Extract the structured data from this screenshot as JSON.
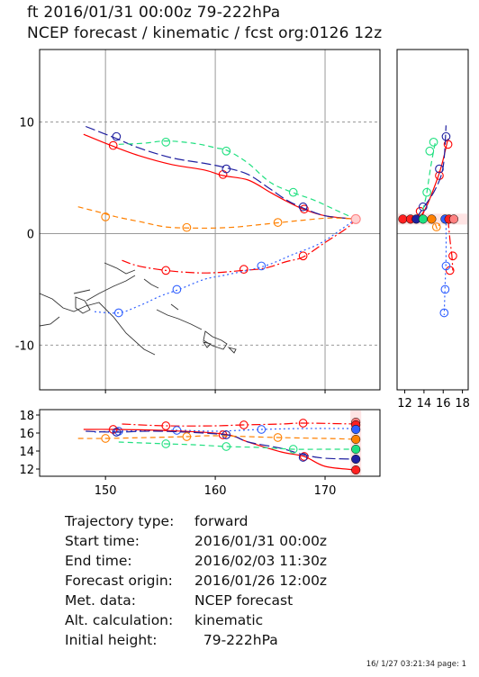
{
  "header": {
    "line1": "ft 2016/01/31 00:00z  79-222hPa",
    "line2": "NCEP forecast / kinematic / fcst org:0126 12z"
  },
  "chart_data": [
    {
      "type": "line",
      "title": "",
      "xlabel": "",
      "ylabel": "",
      "xlim": [
        144,
        175
      ],
      "ylim": [
        -14,
        16.5
      ],
      "xticks": [
        150,
        160,
        170
      ],
      "yticks": [
        -10,
        0,
        10
      ],
      "grid": true,
      "series": [
        {
          "color": "#ff0000",
          "dash": "solid",
          "points": [
            [
              148,
              8.9
            ],
            [
              150.5,
              7.9
            ],
            [
              153,
              7
            ],
            [
              156,
              6.2
            ],
            [
              159,
              5.7
            ],
            [
              160.7,
              5.2
            ],
            [
              163,
              4.8
            ],
            [
              165,
              3.7
            ],
            [
              166.5,
              2.9
            ],
            [
              168,
              2.2
            ],
            [
              170,
              1.6
            ],
            [
              172.8,
              1.3
            ]
          ],
          "markers": [
            [
              150.7,
              7.9
            ],
            [
              160.7,
              5.3
            ],
            [
              168.1,
              2.2
            ],
            [
              172.8,
              1.3
            ]
          ]
        },
        {
          "color": "#2020a0",
          "dash": "long",
          "points": [
            [
              148.2,
              9.6
            ],
            [
              150.8,
              8.6
            ],
            [
              153,
              7.7
            ],
            [
              156,
              6.8
            ],
            [
              159,
              6.3
            ],
            [
              161,
              5.9
            ],
            [
              163,
              5.3
            ],
            [
              165,
              4
            ],
            [
              166.5,
              3
            ],
            [
              168,
              2.3
            ],
            [
              170,
              1.6
            ],
            [
              172.8,
              1.3
            ]
          ],
          "markers": [
            [
              151,
              8.7
            ],
            [
              161,
              5.8
            ],
            [
              168,
              2.4
            ],
            [
              172.8,
              1.3
            ]
          ]
        },
        {
          "color": "#20e080",
          "dash": "dash",
          "points": [
            [
              151.2,
              8
            ],
            [
              153.5,
              8.1
            ],
            [
              155.5,
              8.3
            ],
            [
              158,
              8.1
            ],
            [
              160,
              7.7
            ],
            [
              161.2,
              7.4
            ],
            [
              163,
              6.3
            ],
            [
              165,
              4.6
            ],
            [
              167,
              3.7
            ],
            [
              169,
              3
            ],
            [
              171,
              2.1
            ],
            [
              172.8,
              1.3
            ]
          ],
          "markers": [
            [
              155.5,
              8.2
            ],
            [
              161,
              7.4
            ],
            [
              167.1,
              3.7
            ],
            [
              172.8,
              1.3
            ]
          ]
        },
        {
          "color": "#ff8000",
          "dash": "dash",
          "points": [
            [
              147.5,
              2.4
            ],
            [
              149.5,
              1.9
            ],
            [
              151,
              1.5
            ],
            [
              153,
              1.1
            ],
            [
              155.5,
              0.6
            ],
            [
              158,
              0.5
            ],
            [
              160,
              0.5
            ],
            [
              162,
              0.6
            ],
            [
              164,
              0.8
            ],
            [
              166,
              1
            ],
            [
              168,
              1.2
            ],
            [
              170.5,
              1.4
            ],
            [
              172.8,
              1.3
            ]
          ],
          "markers": [
            [
              150,
              1.5
            ],
            [
              157.4,
              0.55
            ],
            [
              165.7,
              1.0
            ],
            [
              172.8,
              1.3
            ]
          ]
        },
        {
          "color": "#ff0000",
          "dash": "dashdot",
          "points": [
            [
              151.5,
              -2.4
            ],
            [
              153,
              -2.9
            ],
            [
              155.5,
              -3.3
            ],
            [
              158,
              -3.5
            ],
            [
              160,
              -3.5
            ],
            [
              162.5,
              -3.3
            ],
            [
              164.5,
              -3.1
            ],
            [
              166.5,
              -2.5
            ],
            [
              168,
              -2.1
            ],
            [
              170,
              -0.8
            ],
            [
              172,
              0.5
            ],
            [
              172.8,
              1.3
            ]
          ],
          "markers": [
            [
              155.5,
              -3.3
            ],
            [
              162.6,
              -3.2
            ],
            [
              168,
              -2
            ]
          ]
        },
        {
          "color": "#3060ff",
          "dash": "dot",
          "points": [
            [
              149,
              -7
            ],
            [
              151.2,
              -7.1
            ],
            [
              153,
              -6.5
            ],
            [
              155,
              -5.6
            ],
            [
              156.7,
              -5
            ],
            [
              159,
              -4.1
            ],
            [
              161,
              -3.7
            ],
            [
              164.5,
              -2.9
            ],
            [
              167,
              -1.9
            ],
            [
              169.5,
              -0.9
            ],
            [
              171.5,
              0.4
            ],
            [
              172.8,
              1.3
            ]
          ],
          "markers": [
            [
              151.2,
              -7.1
            ],
            [
              156.5,
              -5
            ],
            [
              164.2,
              -2.9
            ]
          ]
        }
      ]
    },
    {
      "type": "line",
      "xlim": [
        11.2,
        18.6
      ],
      "ylim": [
        -14,
        16.5
      ],
      "xticks": [
        12,
        14,
        16,
        18
      ],
      "series": [
        {
          "color": "#ff0000",
          "dash": "solid",
          "points": [
            [
              11.8,
              1.3
            ],
            [
              13,
              1.3
            ],
            [
              14,
              2
            ],
            [
              15,
              4
            ],
            [
              15.8,
              6
            ],
            [
              16.5,
              8.5
            ]
          ],
          "markers": [
            [
              13.6,
              2
            ],
            [
              15.6,
              5.2
            ],
            [
              16.5,
              8
            ]
          ]
        },
        {
          "color": "#2020a0",
          "dash": "long",
          "points": [
            [
              11.8,
              1.3
            ],
            [
              13,
              1.3
            ],
            [
              14,
              2.4
            ],
            [
              15.2,
              4
            ],
            [
              16,
              6
            ],
            [
              16.3,
              9.7
            ]
          ],
          "markers": [
            [
              13.9,
              2.4
            ],
            [
              15.6,
              5.8
            ],
            [
              16.3,
              8.7
            ]
          ]
        },
        {
          "color": "#20e080",
          "dash": "dash",
          "points": [
            [
              13.6,
              1.3
            ],
            [
              14,
              2.5
            ],
            [
              14.3,
              3.7
            ],
            [
              14.7,
              6
            ],
            [
              15.2,
              8.3
            ]
          ],
          "markers": [
            [
              14.3,
              3.7
            ],
            [
              14.6,
              7.4
            ],
            [
              15,
              8.2
            ]
          ]
        },
        {
          "color": "#ff8000",
          "dash": "dash",
          "points": [
            [
              14.8,
              1.6
            ],
            [
              15.2,
              0.8
            ],
            [
              15.4,
              0.4
            ],
            [
              15.6,
              0.9
            ]
          ],
          "markers": [
            [
              15.3,
              0.6
            ]
          ]
        },
        {
          "color": "#ff0000",
          "dash": "dashdot",
          "points": [
            [
              16.5,
              1.3
            ],
            [
              16.7,
              -0.5
            ],
            [
              16.9,
              -2
            ],
            [
              17,
              -3.3
            ]
          ],
          "markers": [
            [
              16.7,
              -3.3
            ],
            [
              17,
              -2
            ]
          ]
        },
        {
          "color": "#3060ff",
          "dash": "dot",
          "points": [
            [
              16.3,
              1.3
            ],
            [
              16.3,
              -2
            ],
            [
              16.2,
              -4.5
            ],
            [
              16.1,
              -7.3
            ]
          ],
          "markers": [
            [
              16.3,
              -2.9
            ],
            [
              16.2,
              -5
            ],
            [
              16.1,
              -7.1
            ]
          ]
        }
      ],
      "endpoints": [
        {
          "x": 11.8,
          "color": "#ff2020"
        },
        {
          "x": 12.6,
          "color": "#ff2020"
        },
        {
          "x": 13.2,
          "color": "#2020a0"
        },
        {
          "x": 13.9,
          "color": "#20e080"
        },
        {
          "x": 14.8,
          "color": "#ff8000"
        },
        {
          "x": 16.2,
          "color": "#3060ff"
        },
        {
          "x": 16.6,
          "color": "#ff2020"
        },
        {
          "x": 17.1,
          "color": "#ff8080"
        }
      ]
    },
    {
      "type": "line",
      "xlim": [
        144,
        175
      ],
      "ylim": [
        11.2,
        18.6
      ],
      "xticks": [
        150,
        160,
        170
      ],
      "yticks": [
        12,
        14,
        16,
        18
      ],
      "series": [
        {
          "color": "#ff0000",
          "dash": "dashdot",
          "points": [
            [
              151.5,
              17
            ],
            [
              155.5,
              16.8
            ],
            [
              160,
              16.8
            ],
            [
              162.5,
              16.9
            ],
            [
              166,
              17
            ],
            [
              168,
              17.1
            ],
            [
              172.8,
              17
            ]
          ],
          "markers": [
            [
              155.5,
              16.8
            ],
            [
              162.6,
              16.9
            ],
            [
              168,
              17.1
            ]
          ]
        },
        {
          "color": "#3060ff",
          "dash": "dot",
          "points": [
            [
              149,
              16.1
            ],
            [
              151.2,
              16.2
            ],
            [
              156.5,
              16.3
            ],
            [
              160,
              16.2
            ],
            [
              164.2,
              16.4
            ],
            [
              168,
              16.5
            ],
            [
              172.8,
              16.5
            ]
          ],
          "markers": [
            [
              151.2,
              16.2
            ],
            [
              156.5,
              16.3
            ],
            [
              164.2,
              16.4
            ]
          ]
        },
        {
          "color": "#ff0000",
          "dash": "solid",
          "points": [
            [
              148,
              16.4
            ],
            [
              150.7,
              16.4
            ],
            [
              155,
              16.3
            ],
            [
              160.7,
              15.9
            ],
            [
              163,
              15
            ],
            [
              166,
              13.9
            ],
            [
              168.1,
              13.4
            ],
            [
              170,
              12.3
            ],
            [
              172.8,
              11.9
            ]
          ],
          "markers": [
            [
              150.7,
              16.4
            ],
            [
              160.7,
              15.8
            ],
            [
              168.1,
              13.4
            ]
          ]
        },
        {
          "color": "#2020a0",
          "dash": "long",
          "points": [
            [
              148.2,
              16.2
            ],
            [
              151,
              16.1
            ],
            [
              155,
              16.2
            ],
            [
              161,
              15.8
            ],
            [
              163,
              15
            ],
            [
              166,
              14.3
            ],
            [
              168,
              13.6
            ],
            [
              170,
              13.2
            ],
            [
              172.8,
              13.1
            ]
          ],
          "markers": [
            [
              151,
              16.1
            ],
            [
              161,
              15.8
            ],
            [
              168,
              13.3
            ]
          ]
        },
        {
          "color": "#ff8000",
          "dash": "dash",
          "points": [
            [
              147.5,
              15.4
            ],
            [
              150,
              15.4
            ],
            [
              154,
              15.5
            ],
            [
              157.4,
              15.6
            ],
            [
              160,
              15.7
            ],
            [
              165.7,
              15.5
            ],
            [
              170,
              15.4
            ],
            [
              172.8,
              15.3
            ]
          ],
          "markers": [
            [
              150,
              15.4
            ],
            [
              157.4,
              15.6
            ],
            [
              165.7,
              15.5
            ]
          ]
        },
        {
          "color": "#20e080",
          "dash": "dash",
          "points": [
            [
              151.2,
              15
            ],
            [
              155.5,
              14.8
            ],
            [
              158,
              14.7
            ],
            [
              161,
              14.5
            ],
            [
              164,
              14.4
            ],
            [
              167.1,
              14.2
            ],
            [
              170,
              14.2
            ],
            [
              172.8,
              14.2
            ]
          ],
          "markers": [
            [
              155.5,
              14.8
            ],
            [
              161,
              14.5
            ],
            [
              167.1,
              14.2
            ]
          ]
        }
      ],
      "endpoints": [
        {
          "y": 17.2,
          "color": "#ff8080"
        },
        {
          "y": 16.9,
          "color": "#ff2020"
        },
        {
          "y": 16.4,
          "color": "#3060ff"
        },
        {
          "y": 15.3,
          "color": "#ff8000"
        },
        {
          "y": 14.2,
          "color": "#20e080"
        },
        {
          "y": 13.1,
          "color": "#2020a0"
        },
        {
          "y": 11.9,
          "color": "#ff2020"
        }
      ]
    }
  ],
  "info": {
    "rows": [
      {
        "key": "Trajectory type:",
        "value": "forward"
      },
      {
        "key": "Start time:",
        "value": "2016/01/31 00:00z"
      },
      {
        "key": "End time:",
        "value": "2016/02/03 11:30z"
      },
      {
        "key": "Forecast origin:",
        "value": "2016/01/26 12:00z"
      },
      {
        "key": "Met. data:",
        "value": "NCEP forecast"
      },
      {
        "key": "Alt. calculation:",
        "value": "kinematic"
      },
      {
        "key": "Initial height:",
        "value": "  79-222hPa"
      }
    ]
  },
  "footer": "16/ 1/27 03:21:34 page: 1"
}
